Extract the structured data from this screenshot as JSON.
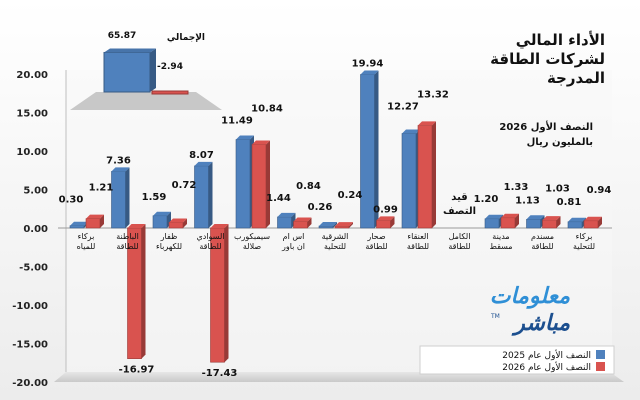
{
  "chart_data": [
    {
      "type": "bar",
      "title": "الأداء المالي لشركات الطاقة المدرجة",
      "title_lines": [
        "الأداء المالي",
        "لشركات الطاقة",
        "المدرجة"
      ],
      "subtitle_lines": [
        "النصف الأول 2026",
        "بالمليون ريال"
      ],
      "categories": [
        "بركاء للمياه",
        "الباطنة للطاقة",
        "ظفار للكهرباء",
        "السوادي للطاقة",
        "سيمبكورب صلالة",
        "اس ام ان باور",
        "الشرقية للتحلية",
        "صحار للطاقة",
        "العنقاء للطاقة",
        "الكامل للطاقة",
        "مدينة مسقط",
        "مسندم للطاقة",
        "بركاء للتحلية"
      ],
      "series": [
        {
          "name": "النصف الأول عام 2025",
          "color": "#4f81bd",
          "values": [
            0.3,
            7.36,
            1.59,
            8.07,
            11.49,
            1.44,
            0.26,
            19.94,
            12.27,
            null,
            1.2,
            1.13,
            0.81
          ]
        },
        {
          "name": "النصف الأول عام 2026",
          "color": "#d9534f",
          "values": [
            1.21,
            -16.97,
            0.72,
            -17.43,
            10.84,
            0.84,
            0.24,
            0.99,
            13.32,
            null,
            1.33,
            1.03,
            0.94
          ]
        }
      ],
      "data_labels": [
        [
          "0.30",
          "1.21"
        ],
        [
          "7.36",
          "-16.97"
        ],
        [
          "1.59",
          "0.72"
        ],
        [
          "8.07",
          "-17.43"
        ],
        [
          "11.49",
          "10.84"
        ],
        [
          "1.44",
          "0.84"
        ],
        [
          "0.26",
          "0.24"
        ],
        [
          "19.94",
          "0.99"
        ],
        [
          "12.27",
          "13.32"
        ],
        [
          "قيد",
          "التصف"
        ],
        [
          "1.20",
          "1.33"
        ],
        [
          "1.13",
          "1.03"
        ],
        [
          "0.81",
          "0.94"
        ]
      ],
      "ylim": [
        -20,
        20
      ],
      "yticks": [
        "20.00",
        "15.00",
        "10.00",
        "5.00",
        "0.00",
        "-5.00",
        "-10.00",
        "-15.00",
        "-20.00"
      ],
      "grid": false,
      "legend_position": "bottom-right"
    },
    {
      "type": "bar",
      "title": "الإجمالي",
      "series": [
        {
          "name": "النصف الأول عام 2025",
          "color": "#4f81bd",
          "values": [
            65.87
          ]
        },
        {
          "name": "النصف الأول عام 2026",
          "color": "#d9534f",
          "values": [
            -2.94
          ]
        }
      ],
      "data_labels": [
        "65.87",
        "-2.94"
      ]
    }
  ],
  "logo": {
    "line1": "معلومات",
    "line2": "مباشر",
    "mark": "TM"
  }
}
